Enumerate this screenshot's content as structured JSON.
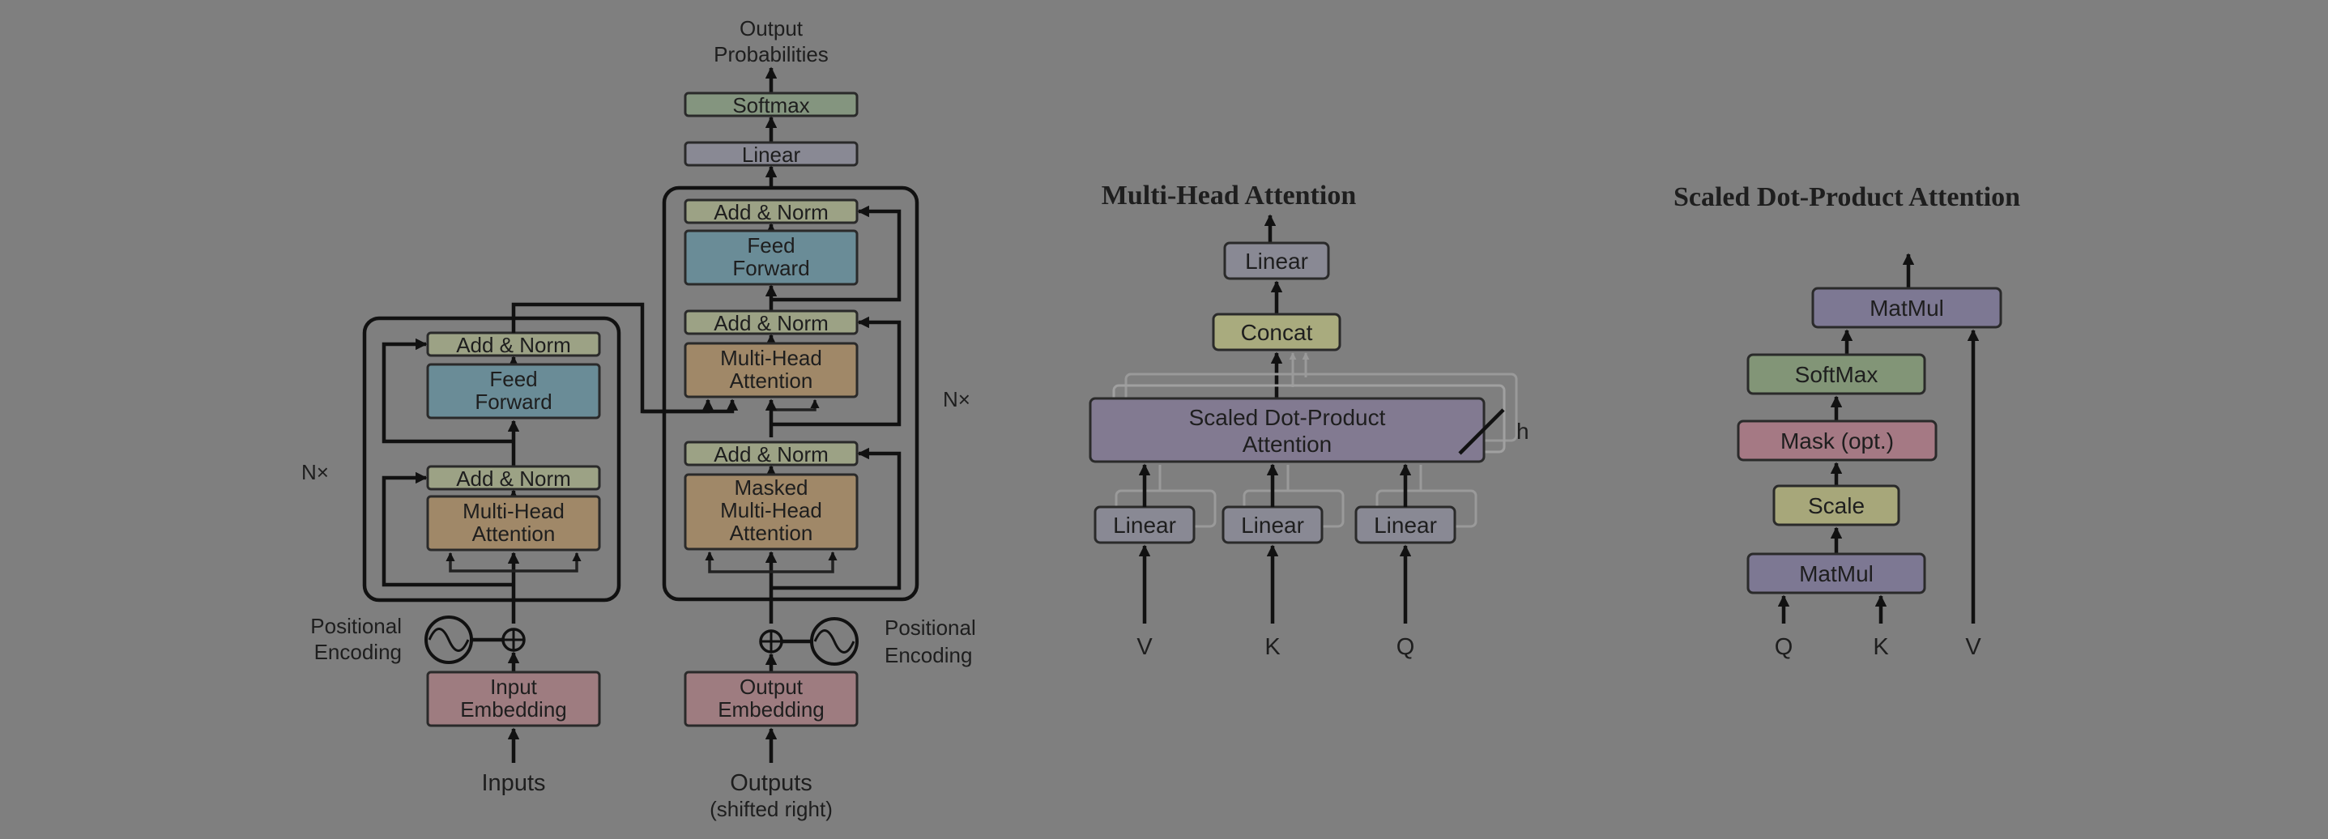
{
  "colors": {
    "background": "#7f7f7f",
    "add_norm": "#9ca285",
    "feed_forward": "#6a8c97",
    "attention": "#a08868",
    "embedding": "#9e7c80",
    "linear": "#898994",
    "softmax_top": "#84957f",
    "concat": "#a9ab7e",
    "sdpa": "#827a91",
    "matmul": "#7d7893",
    "softmax_sdpa": "#829577",
    "mask": "#a57984",
    "scale": "#a7a77a"
  },
  "transformer": {
    "output_probabilities": [
      "Output",
      "Probabilities"
    ],
    "softmax": "Softmax",
    "linear": "Linear",
    "add_norm": "Add & Norm",
    "feed_forward": [
      "Feed",
      "Forward"
    ],
    "multi_head_attention": [
      "Multi-Head",
      "Attention"
    ],
    "masked_multi_head_attention": [
      "Masked",
      "Multi-Head",
      "Attention"
    ],
    "nx": "N×",
    "positional_encoding": [
      "Positional",
      "Encoding"
    ],
    "input_embedding": [
      "Input",
      "Embedding"
    ],
    "output_embedding": [
      "Output",
      "Embedding"
    ],
    "inputs": "Inputs",
    "outputs": [
      "Outputs",
      "(shifted right)"
    ]
  },
  "multi_head": {
    "title": "Multi-Head Attention",
    "linear": "Linear",
    "concat": "Concat",
    "sdpa": [
      "Scaled Dot-Product",
      "Attention"
    ],
    "h": "h",
    "inputs": [
      "V",
      "K",
      "Q"
    ]
  },
  "sdpa": {
    "title": "Scaled Dot-Product Attention",
    "matmul": "MatMul",
    "softmax": "SoftMax",
    "mask": "Mask (opt.)",
    "scale": "Scale",
    "inputs": [
      "Q",
      "K",
      "V"
    ]
  }
}
